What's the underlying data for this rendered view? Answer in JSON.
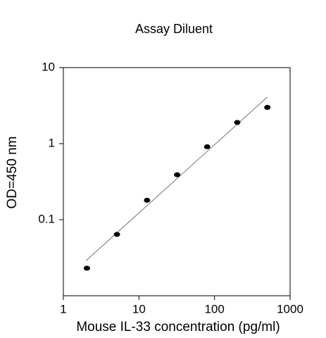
{
  "chart_data": {
    "type": "scatter",
    "title": "Assay Diluent",
    "xlabel": "Mouse IL-33 concentration (pg/ml)",
    "ylabel": "OD=450 nm",
    "x": [
      2.048,
      5.12,
      12.8,
      32,
      80,
      200,
      500
    ],
    "values": [
      0.023,
      0.064,
      0.18,
      0.39,
      0.91,
      1.9,
      3.0
    ],
    "color": "#000000",
    "trendline": {
      "x": [
        2,
        500
      ],
      "y": [
        0.029,
        4.1
      ],
      "color": "#555555"
    },
    "xscale": "log",
    "yscale": "log",
    "xlim": [
      1,
      1000
    ],
    "ylim": [
      0.01,
      10
    ],
    "xticks": [
      1,
      10,
      100,
      1000
    ],
    "yticks": [
      0.1,
      1,
      10
    ]
  }
}
